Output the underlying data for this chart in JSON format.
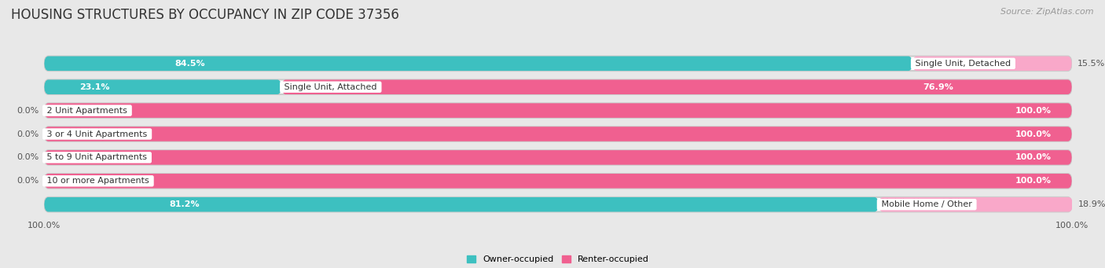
{
  "title": "HOUSING STRUCTURES BY OCCUPANCY IN ZIP CODE 37356",
  "source": "Source: ZipAtlas.com",
  "categories": [
    "Single Unit, Detached",
    "Single Unit, Attached",
    "2 Unit Apartments",
    "3 or 4 Unit Apartments",
    "5 to 9 Unit Apartments",
    "10 or more Apartments",
    "Mobile Home / Other"
  ],
  "owner_pct": [
    84.5,
    23.1,
    0.0,
    0.0,
    0.0,
    0.0,
    81.2
  ],
  "renter_pct": [
    15.5,
    76.9,
    100.0,
    100.0,
    100.0,
    100.0,
    18.9
  ],
  "owner_color": "#3DC0C0",
  "renter_color": "#F06090",
  "renter_color_light": "#F9A8C9",
  "owner_label": "Owner-occupied",
  "renter_label": "Renter-occupied",
  "bg_color": "#e8e8e8",
  "bar_bg_color": "#ffffff",
  "bar_height": 0.62,
  "title_fontsize": 12,
  "label_fontsize": 8,
  "pct_fontsize": 8,
  "tick_fontsize": 8,
  "source_fontsize": 8,
  "rounding_size": 0.4
}
